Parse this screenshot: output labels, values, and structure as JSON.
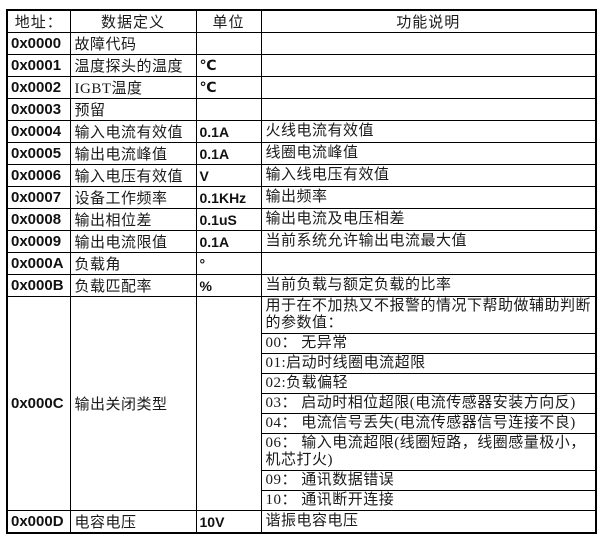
{
  "page": {
    "background_color": "#ffffff",
    "border_color": "#000000",
    "text_color": "#1a1a1a"
  },
  "table": {
    "headers": [
      "地址：",
      "数据定义",
      "单位",
      "功能说明"
    ],
    "rows": [
      {
        "addr": "0x0000",
        "def": "故障代码",
        "unit": "",
        "desc": ""
      },
      {
        "addr": "0x0001",
        "def": "温度探头的温度",
        "unit": "℃",
        "desc": ""
      },
      {
        "addr": "0x0002",
        "def": "IGBT温度",
        "unit": "℃",
        "desc": ""
      },
      {
        "addr": "0x0003",
        "def": "预留",
        "unit": "",
        "desc": ""
      },
      {
        "addr": "0x0004",
        "def": "输入电流有效值",
        "unit": "0.1A",
        "desc": "火线电流有效值"
      },
      {
        "addr": "0x0005",
        "def": "输出电流峰值",
        "unit": "0.1A",
        "desc": "线圈电流峰值"
      },
      {
        "addr": "0x0006",
        "def": "输入电压有效值",
        "unit": "V",
        "desc": "输入线电压有效值"
      },
      {
        "addr": "0x0007",
        "def": "设备工作频率",
        "unit": "0.1KHz",
        "desc": "输出频率"
      },
      {
        "addr": "0x0008",
        "def": "输出相位差",
        "unit": "0.1uS",
        "desc": "输出电流及电压相差"
      },
      {
        "addr": "0x0009",
        "def": "输出电流限值",
        "unit": "0.1A",
        "desc": "当前系统允许输出电流最大值"
      },
      {
        "addr": "0x000A",
        "def": "负载角",
        "unit": "°",
        "desc": ""
      },
      {
        "addr": "0x000B",
        "def": "负载匹配率",
        "unit": "%",
        "desc": "当前负载与额定负载的比率"
      }
    ],
    "merged_row": {
      "addr": "0x000C",
      "def": "输出关闭类型",
      "unit": "",
      "desc_lines": [
        "用于在不加热又不报警的情况下帮助做辅助判断的参数值：",
        "00： 无异常",
        "01:启动时线圈电流超限",
        "02:负载偏轻",
        "03： 启动时相位超限(电流传感器安装方向反)",
        "04： 电流信号丢失(电流传感器信号连接不良)",
        "06： 输入电流超限(线圈短路，线圈感量极小，机芯打火)",
        "09： 通讯数据错误",
        "10： 通讯断开连接"
      ]
    },
    "rows_after": [
      {
        "addr": "0x000D",
        "def": "电容电压",
        "unit": "10V",
        "desc": "谐振电容电压"
      }
    ]
  }
}
